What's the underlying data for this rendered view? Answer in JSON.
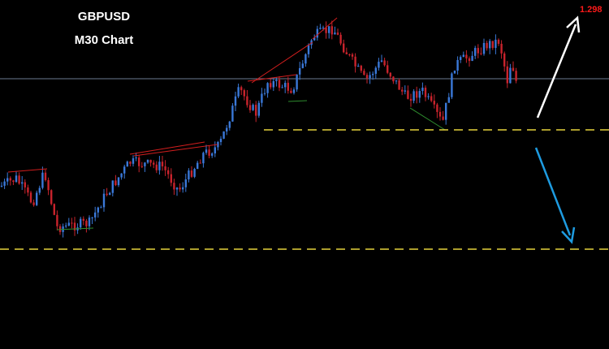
{
  "title": "GBPUSD",
  "subtitle": "M30 Chart",
  "price_label": "1.298"
}
